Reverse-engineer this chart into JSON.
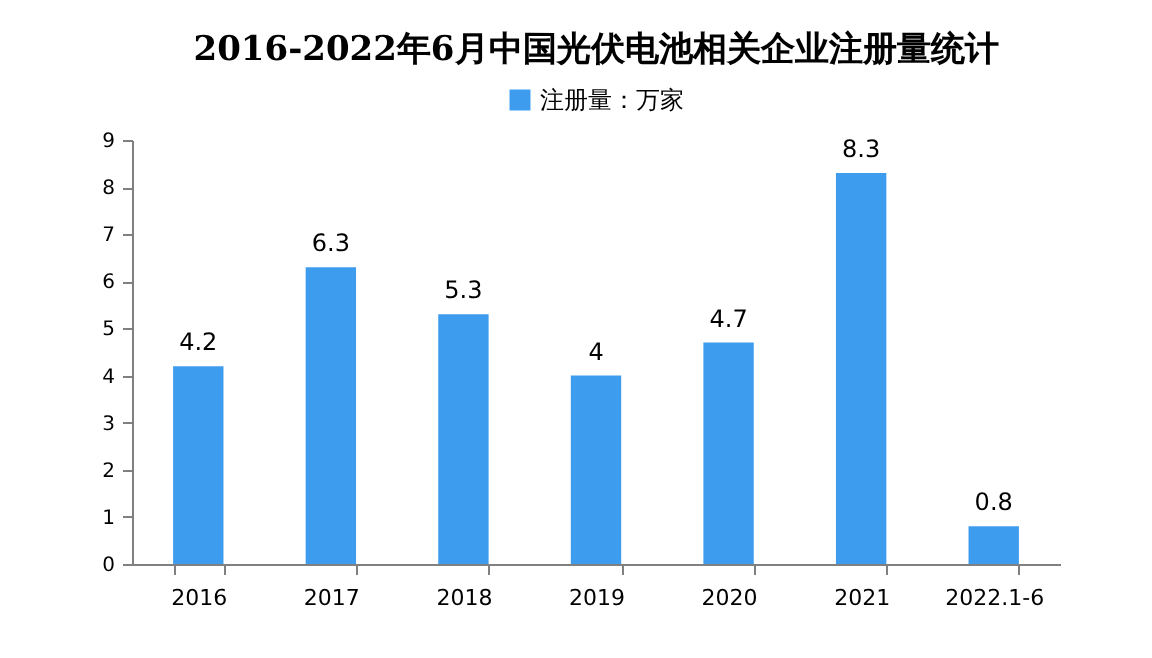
{
  "chart_data": {
    "type": "bar",
    "title": "2016-2022年6月中国光伏电池相关企业注册量统计",
    "categories": [
      "2016",
      "2017",
      "2018",
      "2019",
      "2020",
      "2021",
      "2022.1-6"
    ],
    "series": [
      {
        "name": "注册量：万家",
        "color": "#3e9cee",
        "values": [
          4.2,
          6.3,
          5.3,
          4,
          4.7,
          8.3,
          0.8
        ]
      }
    ],
    "ylim": [
      0,
      9
    ],
    "yticks": [
      0,
      1,
      2,
      3,
      4,
      5,
      6,
      7,
      8,
      9
    ],
    "data_labels": true,
    "legend": "top",
    "grid": false
  }
}
